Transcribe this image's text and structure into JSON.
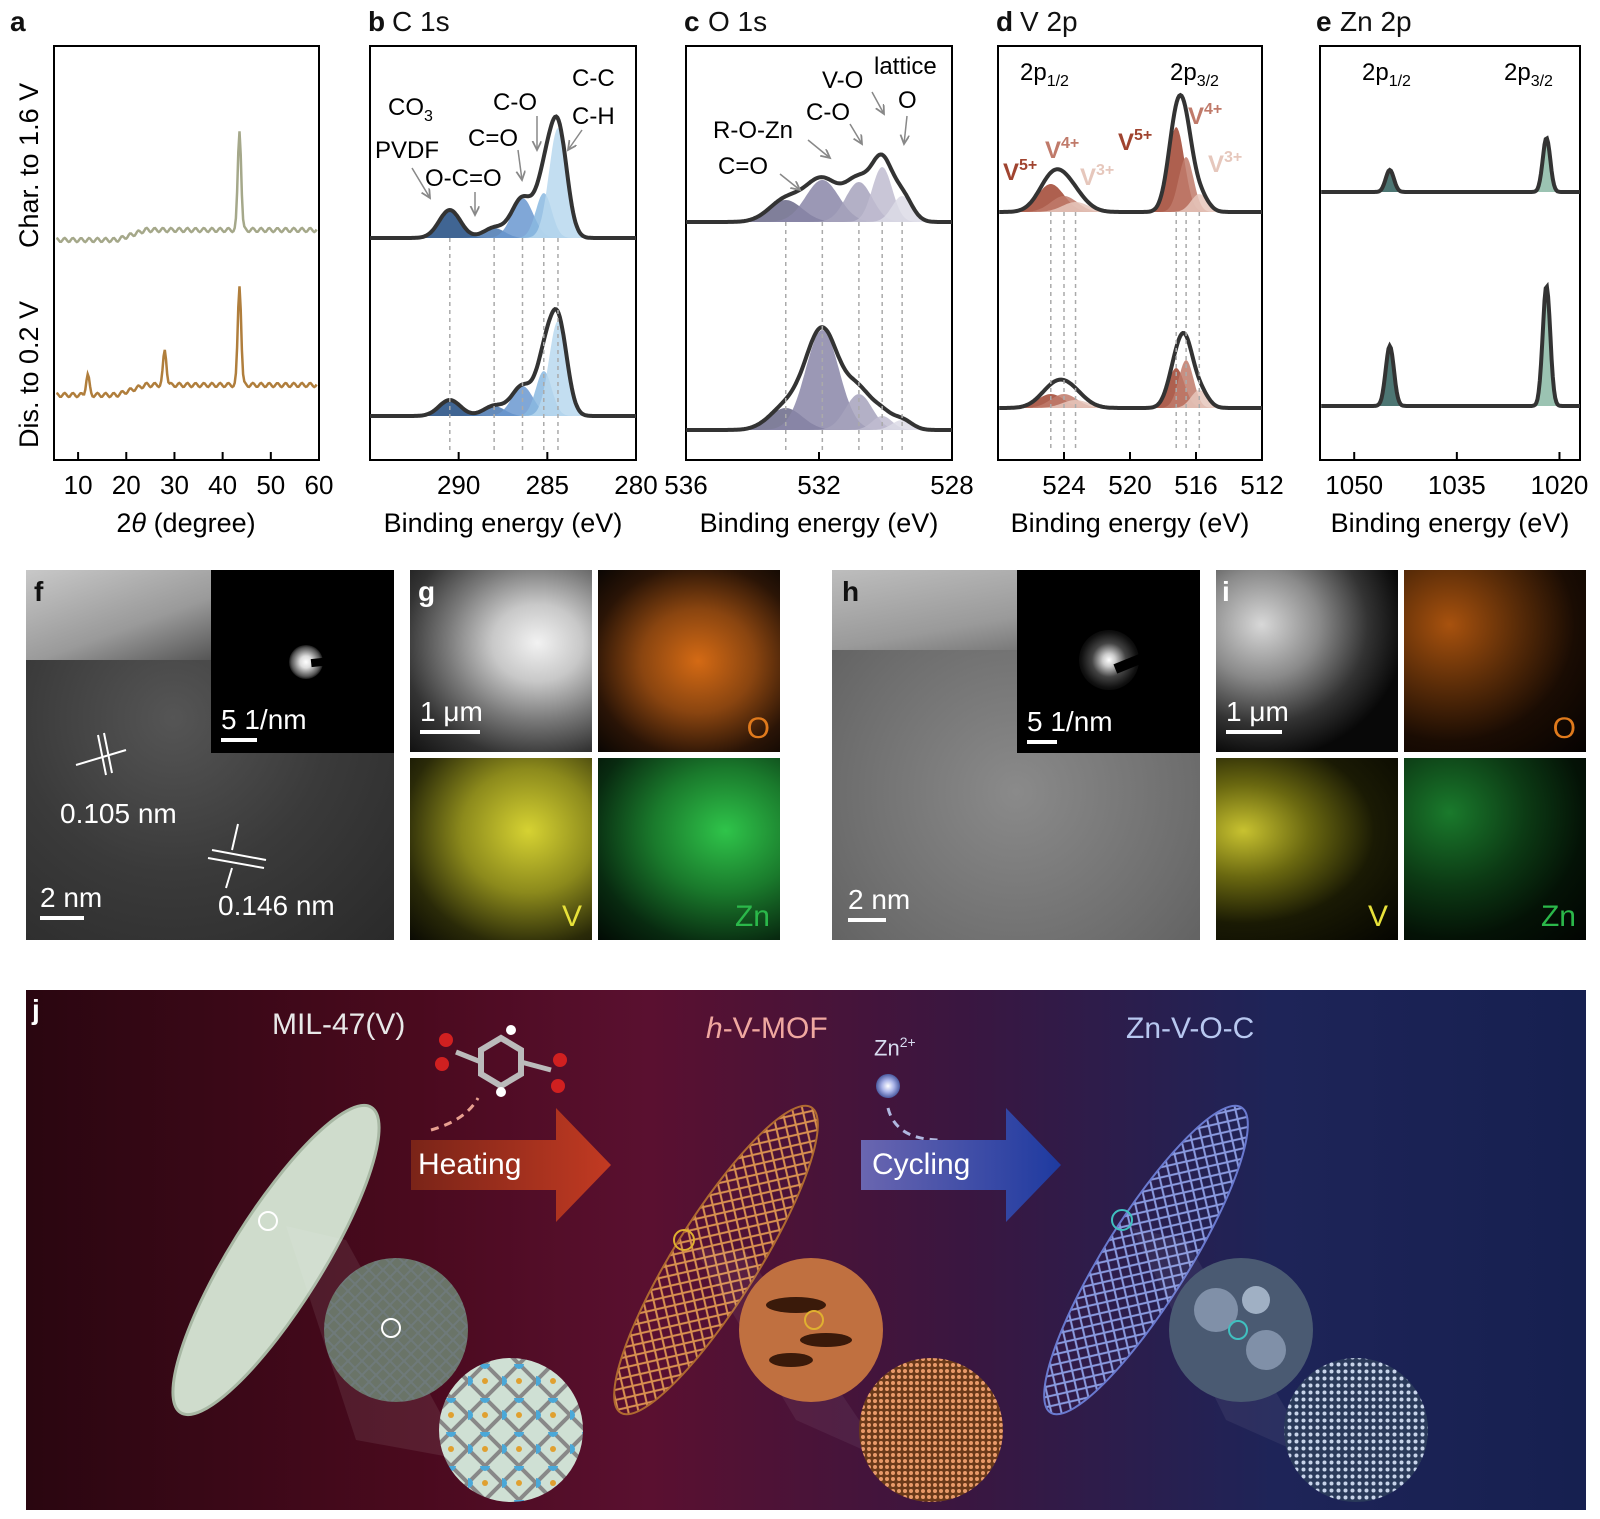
{
  "panels": {
    "a": {
      "letter": "a"
    },
    "b": {
      "letter": "b",
      "title": "C 1s"
    },
    "c": {
      "letter": "c",
      "title": "O 1s"
    },
    "d": {
      "letter": "d",
      "title": "V 2p"
    },
    "e": {
      "letter": "e",
      "title": "Zn 2p"
    },
    "f": {
      "letter": "f"
    },
    "g": {
      "letter": "g"
    },
    "h": {
      "letter": "h"
    },
    "i": {
      "letter": "i"
    },
    "j": {
      "letter": "j"
    }
  },
  "ylabels_a": {
    "top": "Char. to 1.6 V",
    "bottom": "Dis. to 0.2 V"
  },
  "axes": {
    "a": {
      "ticks": [
        "10",
        "20",
        "30",
        "40",
        "50",
        "60"
      ],
      "xlabel_pre": "2",
      "xlabel_theta": "θ",
      "xlabel_post": " (degree)"
    },
    "b": {
      "ticks": [
        "290",
        "285",
        "280"
      ],
      "xlabel": "Binding energy (eV)"
    },
    "c": {
      "ticks": [
        "536",
        "532",
        "528"
      ],
      "xlabel": "Binding energy (eV)"
    },
    "d": {
      "ticks": [
        "524",
        "520",
        "516",
        "512"
      ],
      "xlabel": "Binding energy (eV)"
    },
    "e": {
      "ticks": [
        "1050",
        "1035",
        "1020"
      ],
      "xlabel": "Binding energy (eV)"
    }
  },
  "c1s_labels": {
    "co3": "CO",
    "co3_sub": "3",
    "pvdf": "PVDF",
    "oco": "O-C=O",
    "ceo": "C=O",
    "co": "C-O",
    "cc": "C-C",
    "ch": "C-H"
  },
  "o1s_labels": {
    "ceo": "C=O",
    "roz": "R-O-Zn",
    "co": "C-O",
    "vo": "V-O",
    "lattice": "lattice",
    "o": "O"
  },
  "v2p_labels": {
    "p12": "2p",
    "p12_sub": "1/2",
    "p32": "2p",
    "p32_sub": "3/2",
    "v5": "V",
    "v5_sup": "5+",
    "v4": "V",
    "v4_sup": "4+",
    "v3": "V",
    "v3_sup": "3+"
  },
  "zn2p_labels": {
    "p12": "2p",
    "p12_sub": "1/2",
    "p32": "2p",
    "p32_sub": "3/2"
  },
  "tem": {
    "f": {
      "scale": "2 nm",
      "saed": "5 1/nm",
      "d1": "0.105 nm",
      "d2": "0.146 nm"
    },
    "g": {
      "scale": "1 μm",
      "o": "O",
      "v": "V",
      "zn": "Zn"
    },
    "h": {
      "scale": "2 nm",
      "saed": "5 1/nm"
    },
    "i": {
      "scale": "1 μm",
      "o": "O",
      "v": "V",
      "zn": "Zn"
    }
  },
  "scheme": {
    "mil": "MIL-47(V)",
    "hv_italic": "h",
    "hv_rest": "-V-MOF",
    "znvoc": "Zn-V-O-C",
    "zn_ion": "Zn",
    "zn_ion_sup": "2+",
    "heating": "Heating",
    "cycling": "Cycling"
  },
  "chart_data": [
    {
      "panel": "a",
      "type": "line",
      "xlim": [
        5,
        60
      ],
      "xlabel": "2θ (degree)",
      "series": [
        {
          "name": "Char. to 1.6 V",
          "color": "#a5a88a",
          "peaks_2theta": [
            43.5
          ]
        },
        {
          "name": "Dis. to 0.2 V",
          "color": "#b07e3c",
          "peaks_2theta": [
            12,
            28,
            43.5
          ]
        }
      ]
    },
    {
      "panel": "b",
      "type": "line",
      "title": "C 1s",
      "xlim": [
        295,
        280
      ],
      "xlabel": "Binding energy (eV)",
      "components_eV": [
        290.5,
        288.0,
        286.4,
        285.2,
        284.4
      ]
    },
    {
      "panel": "c",
      "type": "line",
      "title": "O 1s",
      "xlim": [
        536,
        528
      ],
      "xlabel": "Binding energy (eV)",
      "components_eV": [
        533.0,
        531.9,
        530.8,
        530.1,
        529.5
      ]
    },
    {
      "panel": "d",
      "type": "line",
      "title": "V 2p",
      "xlim": [
        528,
        512
      ],
      "xlabel": "Binding energy (eV)",
      "components_eV": [
        524.8,
        524.0,
        523.3,
        517.2,
        516.6,
        515.8
      ]
    },
    {
      "panel": "e",
      "type": "line",
      "title": "Zn 2p",
      "xlim": [
        1055,
        1017
      ],
      "xlabel": "Binding energy (eV)",
      "components_eV": [
        1044.8,
        1021.9
      ]
    }
  ],
  "colors": {
    "orange": "#e07a1c",
    "yellow": "#e8e23a",
    "green": "#2bb84a",
    "red_arrow": "#b43a2a",
    "blue_arrow": "#2a4aa8"
  }
}
